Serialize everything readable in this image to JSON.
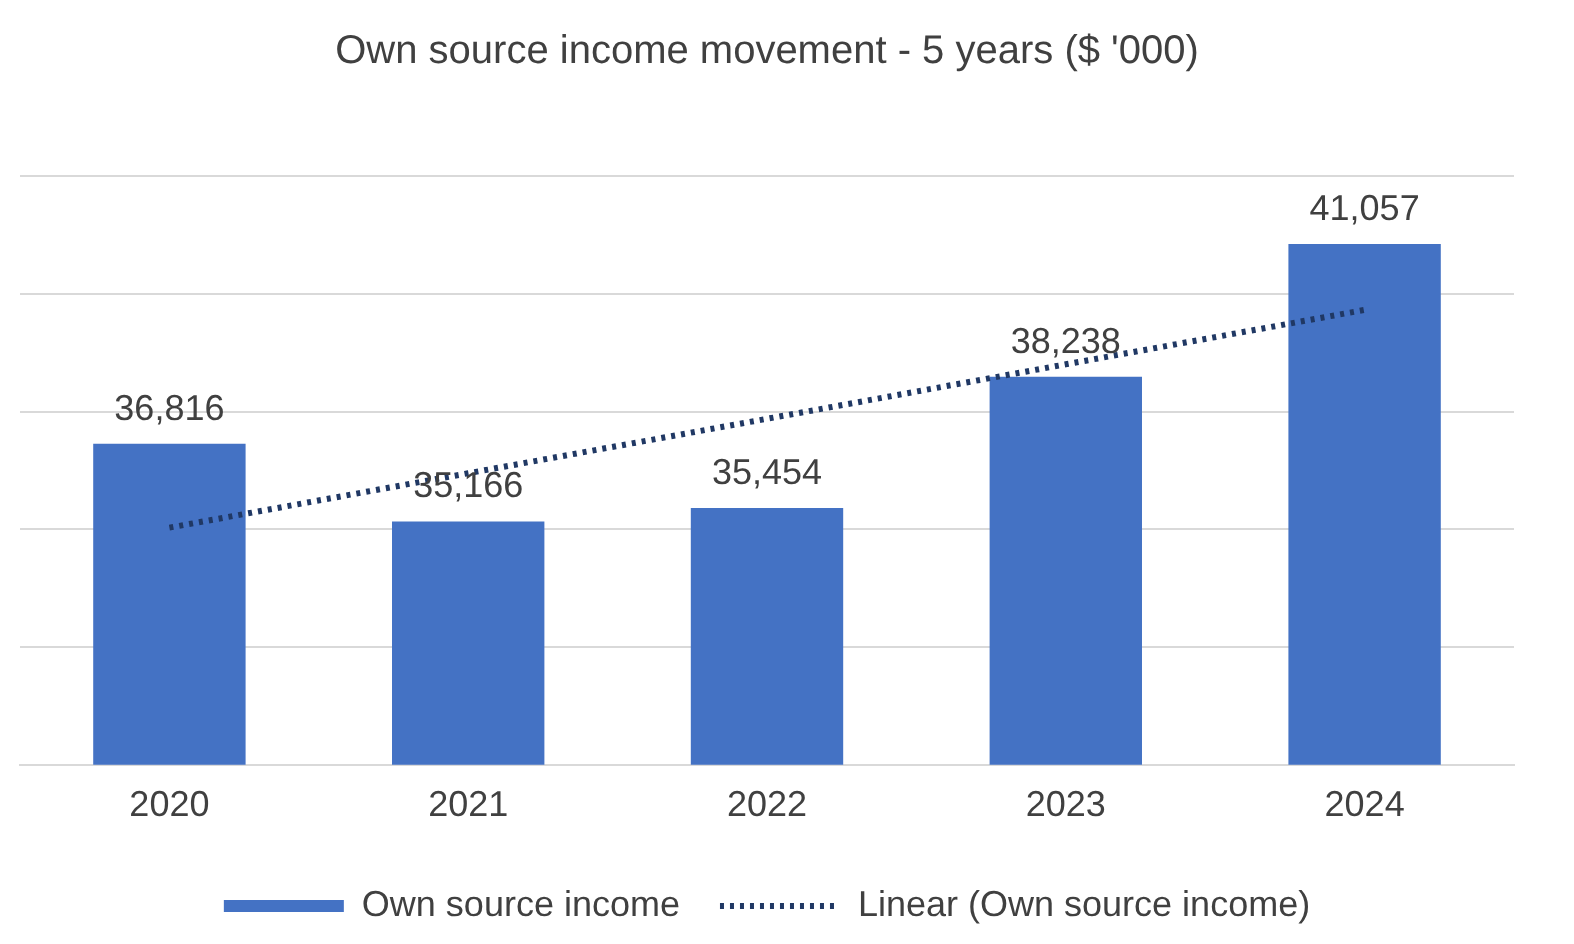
{
  "chart_data": {
    "type": "bar",
    "title": "Own source income movement - 5 years ($ '000)",
    "categories": [
      "2020",
      "2021",
      "2022",
      "2023",
      "2024"
    ],
    "series": [
      {
        "name": "Own source income",
        "color": "#4472c4",
        "values": [
          36816,
          35166,
          35454,
          38238,
          41057
        ],
        "value_labels": [
          "36,816",
          "35,166",
          "35,454",
          "38,238",
          "41,057"
        ]
      },
      {
        "name": "Linear (Own source income)",
        "type": "line",
        "color": "#203864",
        "line_style": "dotted",
        "marker": "none",
        "values": [
          35035,
          36190,
          37346,
          38502,
          39657
        ]
      }
    ],
    "ylim": [
      30000,
      42500
    ],
    "yticks": [
      {
        "value": 30000,
        "label": null
      },
      {
        "value": 32500,
        "label": null
      },
      {
        "value": 35000,
        "label": null
      },
      {
        "value": 37500,
        "label": null
      },
      {
        "value": 40000,
        "label": null
      },
      {
        "value": 42500,
        "label": null
      }
    ],
    "tick_labels": "x",
    "grid": "y",
    "legend": "bottom"
  }
}
